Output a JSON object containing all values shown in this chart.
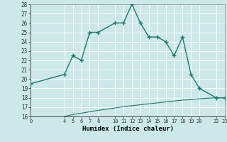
{
  "title": "",
  "xlabel": "Humidex (Indice chaleur)",
  "bg_color": "#cce8e8",
  "line_color": "#1a7a6e",
  "grid_color": "#ffffff",
  "xlim": [
    0,
    23
  ],
  "ylim": [
    16,
    28
  ],
  "xticks": [
    0,
    4,
    5,
    6,
    7,
    8,
    10,
    11,
    12,
    13,
    14,
    15,
    16,
    17,
    18,
    19,
    20,
    22,
    23
  ],
  "yticks": [
    16,
    17,
    18,
    19,
    20,
    21,
    22,
    23,
    24,
    25,
    26,
    27,
    28
  ],
  "curve1_x": [
    0,
    4,
    5,
    6,
    7,
    8,
    10,
    11,
    12,
    13,
    14,
    15,
    16,
    17,
    18,
    19,
    20,
    22,
    23
  ],
  "curve1_y": [
    19.5,
    20.5,
    22.5,
    22.0,
    25.0,
    25.0,
    26.0,
    26.0,
    28.0,
    26.0,
    24.5,
    24.5,
    24.0,
    22.5,
    24.5,
    20.5,
    19.0,
    18.0,
    18.0
  ],
  "curve2_x": [
    4,
    5,
    6,
    7,
    8,
    10,
    11,
    12,
    13,
    14,
    15,
    16,
    17,
    18,
    19,
    20,
    22,
    23
  ],
  "curve2_y": [
    16.0,
    16.2,
    16.35,
    16.5,
    16.65,
    16.9,
    17.05,
    17.15,
    17.25,
    17.35,
    17.45,
    17.55,
    17.65,
    17.75,
    17.8,
    17.9,
    18.0,
    18.0
  ]
}
